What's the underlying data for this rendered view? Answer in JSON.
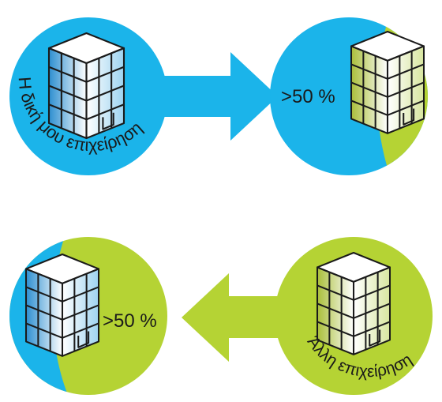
{
  "colors": {
    "blue": "#1BB4EA",
    "green": "#B5D334",
    "outline": "#1a1a1a",
    "glass_blue": "#4FA6D8",
    "glass_green": "#9DB52E"
  },
  "top": {
    "own_company_label": "Η δική μου επιχείρηση",
    "share_label": ">50 %",
    "arrow_direction": "right"
  },
  "bottom": {
    "share_label": ">50 %",
    "other_company_label": "Άλλη επιχείρηση",
    "arrow_direction": "left"
  },
  "icons": [
    "building-icon",
    "arrow-right-icon",
    "arrow-left-icon"
  ]
}
